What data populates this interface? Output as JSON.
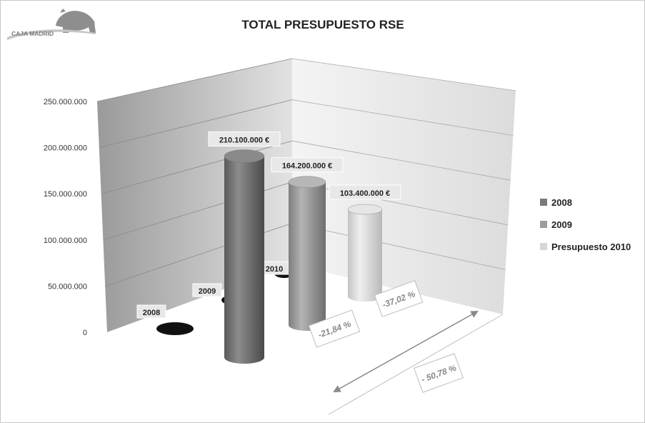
{
  "logo": {
    "text": "CAJA MADRID"
  },
  "chart_data": {
    "type": "bar",
    "title": "TOTAL PRESUPUESTO RSE",
    "categories": [
      "2008",
      "2009",
      "2010"
    ],
    "series": [
      {
        "name": "2008",
        "values": [
          210100000,
          null,
          null
        ],
        "color": "#7a7a7a"
      },
      {
        "name": "2009",
        "values": [
          null,
          164200000,
          null
        ],
        "color": "#9c9c9c"
      },
      {
        "name": "Presupuesto 2010",
        "values": [
          null,
          null,
          103400000
        ],
        "color": "#d6d6d6"
      }
    ],
    "data_labels": [
      "210.100.000 €",
      "164.200.000 €",
      "103.400.000 €"
    ],
    "ylim": [
      0,
      250000000
    ],
    "yticks": [
      0,
      50000000,
      100000000,
      150000000,
      200000000,
      250000000
    ],
    "ytick_labels": [
      "0",
      "50.000.000",
      "100.000.000",
      "150.000.000",
      "200.000.000",
      "250.000.000"
    ],
    "legend_position": "right",
    "grid": true,
    "annotations": [
      "-21,84 %",
      "-37,02 %",
      "- 50,78 %"
    ]
  }
}
